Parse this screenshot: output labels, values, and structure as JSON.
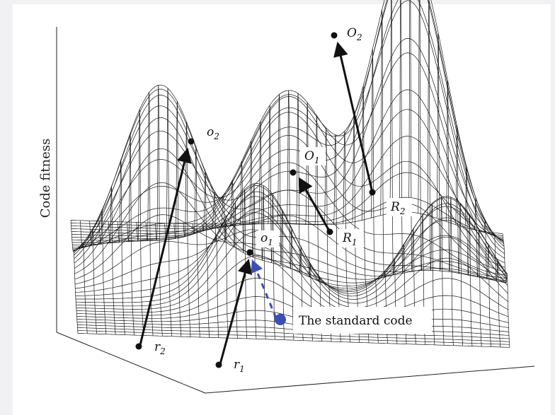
{
  "figure": {
    "y_axis_label": "Code fitness",
    "standard_code_label": "The standard code"
  },
  "points": {
    "O2": {
      "base": "O",
      "sub": "2"
    },
    "O1": {
      "base": "O",
      "sub": "1"
    },
    "o2": {
      "base": "o",
      "sub": "2"
    },
    "o1": {
      "base": "o",
      "sub": "1"
    },
    "R2": {
      "base": "R",
      "sub": "2"
    },
    "R1": {
      "base": "R",
      "sub": "1"
    },
    "r2": {
      "base": "r",
      "sub": "2"
    },
    "r1": {
      "base": "r",
      "sub": "1"
    }
  },
  "colors": {
    "background": "#f1f1f3",
    "panel": "#ffffff",
    "mesh": "#1a1a1a",
    "standard_code": "#3b4fb4"
  }
}
